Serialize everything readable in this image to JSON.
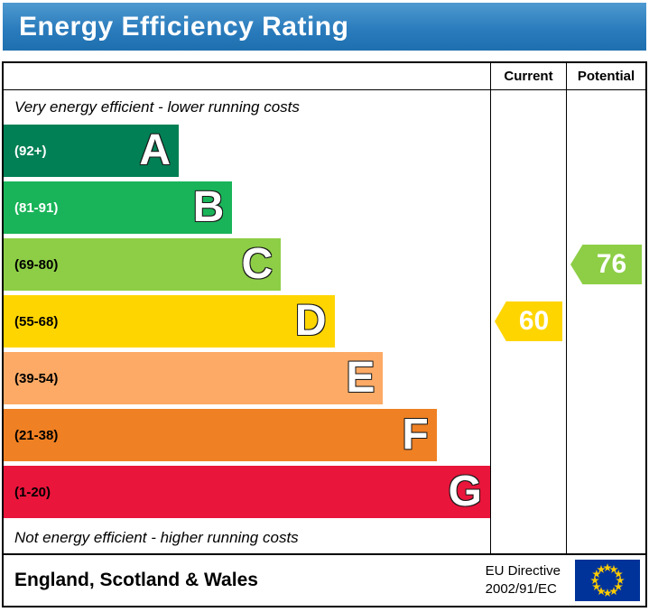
{
  "header": {
    "title": "Energy Efficiency Rating"
  },
  "table": {
    "current_label": "Current",
    "potential_label": "Potential",
    "top_note": "Very energy efficient - lower running costs",
    "bottom_note": "Not energy efficient - higher running costs"
  },
  "footer": {
    "region": "England, Scotland & Wales",
    "directive_line1": "EU Directive",
    "directive_line2": "2002/91/EC",
    "flag_icon": "eu-flag",
    "flag_bg_color": "#003399",
    "flag_star_color": "#ffcc00"
  },
  "chart_data": {
    "type": "bar",
    "title": "Energy Efficiency Rating",
    "scale": {
      "min": 1,
      "max": 100
    },
    "categories": [
      "A",
      "B",
      "C",
      "D",
      "E",
      "F",
      "G"
    ],
    "bands": [
      {
        "letter": "A",
        "range_label": "(92+)",
        "min": 92,
        "max": 100,
        "color": "#008054",
        "label_color": "#ffffff",
        "width_pct": 36
      },
      {
        "letter": "B",
        "range_label": "(81-91)",
        "min": 81,
        "max": 91,
        "color": "#19b459",
        "label_color": "#ffffff",
        "width_pct": 47
      },
      {
        "letter": "C",
        "range_label": "(69-80)",
        "min": 69,
        "max": 80,
        "color": "#8dce46",
        "label_color": "#000000",
        "width_pct": 57
      },
      {
        "letter": "D",
        "range_label": "(55-68)",
        "min": 55,
        "max": 68,
        "color": "#ffd500",
        "label_color": "#000000",
        "width_pct": 68
      },
      {
        "letter": "E",
        "range_label": "(39-54)",
        "min": 39,
        "max": 54,
        "color": "#fcaa65",
        "label_color": "#000000",
        "width_pct": 78
      },
      {
        "letter": "F",
        "range_label": "(21-38)",
        "min": 21,
        "max": 38,
        "color": "#ef8023",
        "label_color": "#000000",
        "width_pct": 89
      },
      {
        "letter": "G",
        "range_label": "(1-20)",
        "min": 1,
        "max": 20,
        "color": "#e9153b",
        "label_color": "#000000",
        "width_pct": 100
      }
    ],
    "markers": {
      "current": {
        "value": 60,
        "band": "D",
        "color": "#ffd500",
        "text_color": "#ffffff"
      },
      "potential": {
        "value": 76,
        "band": "C",
        "color": "#8dce46",
        "text_color": "#ffffff"
      }
    }
  }
}
